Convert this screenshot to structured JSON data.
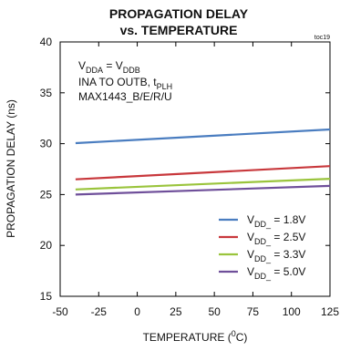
{
  "chart_data": {
    "type": "line",
    "title_line1": "PROPAGATION DELAY",
    "title_line2": "vs. TEMPERATURE",
    "tag": "toc19",
    "xlabel_main": "TEMPERATURE (",
    "xlabel_sup": "0",
    "xlabel_end": "C)",
    "ylabel": "PROPAGATION DELAY (ns)",
    "xlim": [
      -50,
      125
    ],
    "ylim": [
      15,
      40
    ],
    "xticks": [
      -50,
      -25,
      0,
      25,
      50,
      75,
      100,
      125
    ],
    "yticks": [
      15,
      20,
      25,
      30,
      35,
      40
    ],
    "grid": false,
    "legend_position": "bottom-right",
    "notes": {
      "line1": {
        "a": "V",
        "a_sub": "DDA",
        "b": " = V",
        "b_sub": "DDB"
      },
      "line2": {
        "a": "INA TO OUTB, t",
        "a_sub": "PLH"
      },
      "line3": "MAX1443_B/E/R/U"
    },
    "series": [
      {
        "name_main": "V",
        "name_sub": "DD_",
        "name_end": " = 1.8V",
        "color": "#4a7dc0",
        "x": [
          -40,
          125
        ],
        "values": [
          30.05,
          31.4
        ]
      },
      {
        "name_main": "V",
        "name_sub": "DD_",
        "name_end": " = 2.5V",
        "color": "#c8383c",
        "x": [
          -40,
          125
        ],
        "values": [
          26.5,
          27.8
        ]
      },
      {
        "name_main": "V",
        "name_sub": "DD_",
        "name_end": " = 3.3V",
        "color": "#9ac43c",
        "x": [
          -40,
          125
        ],
        "values": [
          25.5,
          26.55
        ]
      },
      {
        "name_main": "V",
        "name_sub": "DD_",
        "name_end": " = 5.0V",
        "color": "#6f4f9a",
        "x": [
          -40,
          125
        ],
        "values": [
          25.0,
          25.85
        ]
      }
    ]
  }
}
